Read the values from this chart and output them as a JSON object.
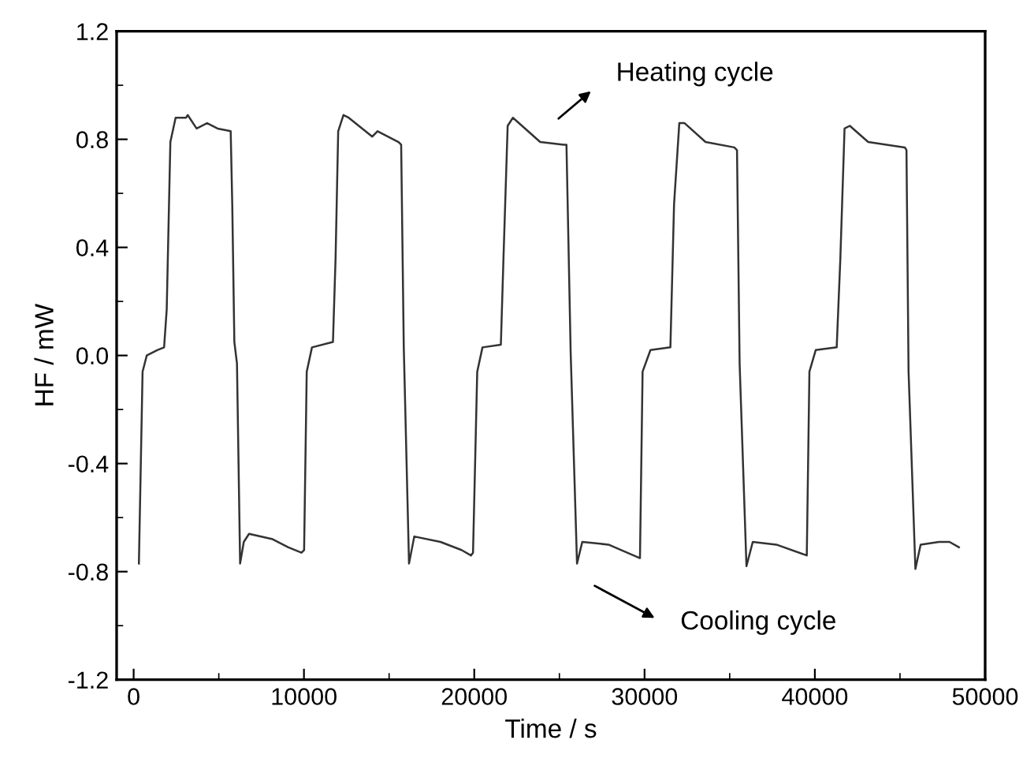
{
  "chart_data": {
    "type": "line",
    "xlabel": "Time / s",
    "ylabel": "HF / mW",
    "xlim": [
      -1000,
      50000
    ],
    "xticks": [
      0,
      10000,
      20000,
      30000,
      40000,
      50000
    ],
    "ylim": [
      -1.2,
      1.2
    ],
    "yticks": [
      -1.2,
      -0.8,
      -0.4,
      {
        "value": 0,
        "label": "0.0"
      },
      0.4,
      0.8,
      1.2
    ],
    "grid": false,
    "legend": false,
    "marker": "none",
    "line_style": "solid",
    "annotations": [
      "Heating cycle",
      "Cooling cycle"
    ],
    "series": [
      {
        "color": "#333333",
        "x": [
          308,
          524,
          770,
          1386,
          1787,
          1941,
          2156,
          2464,
          3080,
          3172,
          3696,
          4312,
          4928,
          5698,
          5790,
          5913,
          6067,
          6252,
          6467,
          6775,
          8161,
          9085,
          9855,
          10009,
          10163,
          10471,
          11703,
          11857,
          12011,
          12319,
          12627,
          14013,
          14321,
          15554,
          15708,
          15862,
          16170,
          16478,
          18018,
          19250,
          19805,
          19928,
          20175,
          20483,
          21562,
          21716,
          21962,
          22270,
          23871,
          25258,
          25415,
          25662,
          26035,
          26343,
          27883,
          29731,
          29885,
          30347,
          31518,
          31733,
          32041,
          32349,
          33581,
          35275,
          35429,
          35583,
          35984,
          36354,
          37740,
          39527,
          39681,
          40050,
          41283,
          41498,
          41744,
          42052,
          43131,
          45287,
          45380,
          45503,
          45904,
          46212,
          47290,
          47906,
          48460
        ],
        "values": [
          -0.77,
          -0.06,
          0.0,
          0.02,
          0.03,
          0.17,
          0.79,
          0.88,
          0.88,
          0.89,
          0.84,
          0.86,
          0.84,
          0.83,
          0.56,
          0.05,
          -0.03,
          -0.77,
          -0.69,
          -0.66,
          -0.68,
          -0.71,
          -0.73,
          -0.72,
          -0.06,
          0.03,
          0.05,
          0.36,
          0.83,
          0.89,
          0.88,
          0.81,
          0.83,
          0.79,
          0.78,
          0.03,
          -0.77,
          -0.67,
          -0.69,
          -0.72,
          -0.74,
          -0.73,
          -0.06,
          0.03,
          0.04,
          0.36,
          0.85,
          0.88,
          0.79,
          0.78,
          0.78,
          0.01,
          -0.77,
          -0.69,
          -0.7,
          -0.75,
          -0.06,
          0.02,
          0.03,
          0.56,
          0.86,
          0.86,
          0.79,
          0.77,
          0.76,
          -0.03,
          -0.78,
          -0.69,
          -0.7,
          -0.74,
          -0.06,
          0.02,
          0.03,
          0.36,
          0.84,
          0.85,
          0.79,
          0.77,
          0.76,
          -0.06,
          -0.79,
          -0.7,
          -0.69,
          -0.69,
          -0.71
        ]
      }
    ]
  }
}
